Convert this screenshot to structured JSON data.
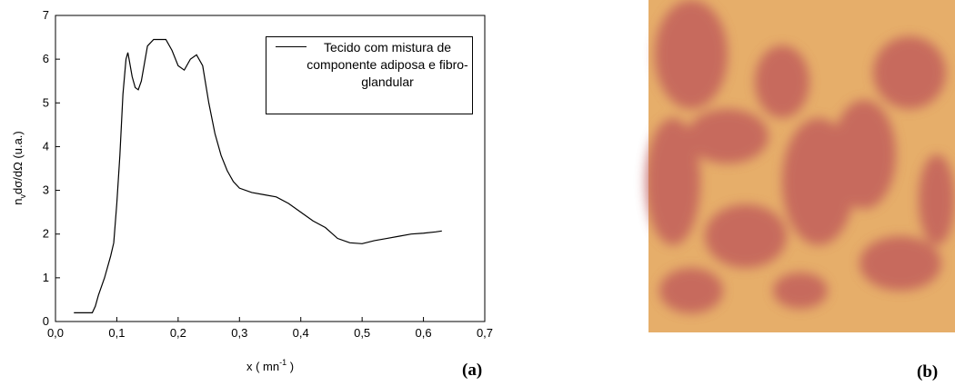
{
  "chart_data": {
    "type": "line",
    "y_label": {
      "base": "n",
      "sub": "v",
      "rest": "dσ/dΩ (u.a.)"
    },
    "x_label": {
      "base": "x ( mn",
      "sup": "-1",
      "rest": " )"
    },
    "panel_label": "(a)",
    "xlim": [
      0,
      0.7
    ],
    "ylim": [
      0,
      7
    ],
    "xticks": [
      {
        "value": 0,
        "label": "0,0"
      },
      {
        "value": 0.1,
        "label": "0,1"
      },
      {
        "value": 0.2,
        "label": "0,2"
      },
      {
        "value": 0.3,
        "label": "0,3"
      },
      {
        "value": 0.4,
        "label": "0,4"
      },
      {
        "value": 0.5,
        "label": "0,5"
      },
      {
        "value": 0.6,
        "label": "0,6"
      },
      {
        "value": 0.7,
        "label": "0,7"
      }
    ],
    "yticks": [
      0,
      1,
      2,
      3,
      4,
      5,
      6,
      7
    ],
    "grid": false,
    "x": [
      0.03,
      0.05,
      0.06,
      0.065,
      0.07,
      0.08,
      0.09,
      0.095,
      0.1,
      0.105,
      0.11,
      0.115,
      0.118,
      0.12,
      0.125,
      0.13,
      0.135,
      0.14,
      0.145,
      0.15,
      0.16,
      0.17,
      0.18,
      0.19,
      0.2,
      0.21,
      0.22,
      0.23,
      0.24,
      0.25,
      0.26,
      0.27,
      0.28,
      0.29,
      0.3,
      0.32,
      0.34,
      0.36,
      0.38,
      0.4,
      0.42,
      0.44,
      0.46,
      0.48,
      0.5,
      0.52,
      0.54,
      0.56,
      0.58,
      0.6,
      0.62,
      0.63
    ],
    "series": [
      {
        "name": "Tecido com mistura de componente adiposa e fibro-glandular",
        "color": "#000000",
        "values": [
          0.2,
          0.2,
          0.2,
          0.35,
          0.6,
          1.0,
          1.5,
          1.8,
          2.7,
          3.8,
          5.2,
          6.0,
          6.15,
          6.0,
          5.6,
          5.35,
          5.3,
          5.5,
          5.9,
          6.3,
          6.45,
          6.45,
          6.45,
          6.2,
          5.85,
          5.75,
          6.0,
          6.1,
          5.85,
          5.0,
          4.3,
          3.8,
          3.45,
          3.2,
          3.05,
          2.95,
          2.9,
          2.85,
          2.7,
          2.5,
          2.3,
          2.15,
          1.9,
          1.8,
          1.78,
          1.85,
          1.9,
          1.95,
          2.0,
          2.02,
          2.05,
          2.07
        ]
      }
    ]
  },
  "image_panel_label": "(b)"
}
